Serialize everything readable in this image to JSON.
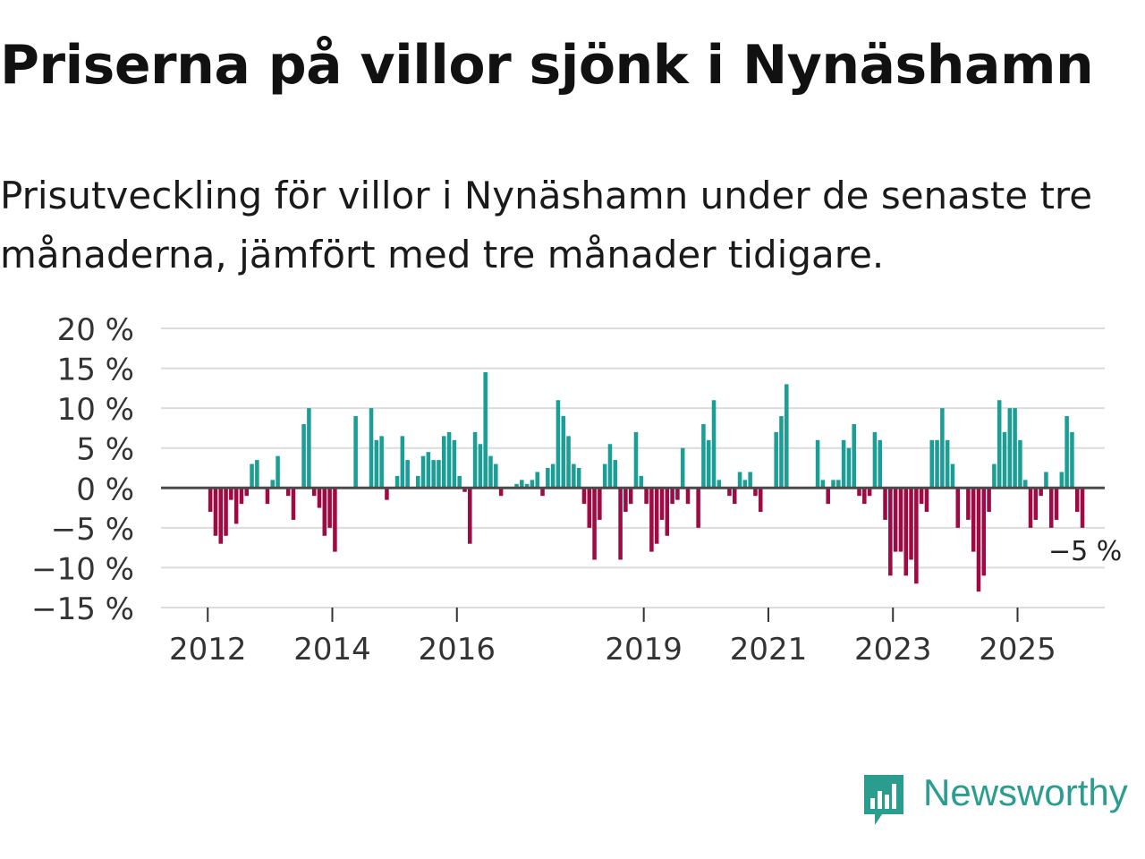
{
  "title": "Priserna på villor sjönk i Nynäshamn",
  "subtitle": "Prisutveckling för villor i Nynäshamn under de senaste tre månaderna, jämfört med tre månader tidigare.",
  "brand": {
    "name": "Newsworthy",
    "color": "#2a9d8f",
    "icon": "newsworthy-logo-icon"
  },
  "colors": {
    "positive": "#1a9e96",
    "negative": "#9e0a44",
    "grid": "#dcdcdc",
    "zero": "#4a4a4a"
  },
  "chart_data": {
    "type": "bar",
    "title": "Priserna på villor sjönk i Nynäshamn",
    "xlabel": "",
    "ylabel": "",
    "ylim": [
      -15,
      20
    ],
    "xlim": [
      2011.25,
      2026.4
    ],
    "y_ticks": [
      20,
      15,
      10,
      5,
      0,
      -5,
      -10,
      -15
    ],
    "y_tick_labels": [
      "20 %",
      "15 %",
      "10 %",
      "5 %",
      "0 %",
      "−5 %",
      "−10 %",
      "−15 %"
    ],
    "x_ticks": [
      2012,
      2014,
      2016,
      2019,
      2021,
      2023,
      2025
    ],
    "x_tick_labels": [
      "2012",
      "2014",
      "2016",
      "2019",
      "2021",
      "2023",
      "2025"
    ],
    "grid": true,
    "annotation": {
      "label": "−5 %",
      "value": -5
    },
    "start_year": 2012,
    "start_month": 1,
    "frequency": "monthly",
    "values": [
      -3,
      -6,
      -7,
      -6,
      -1.5,
      -4.5,
      -2,
      -1,
      3,
      3.5,
      0,
      -2,
      1,
      4,
      0,
      -1,
      -4,
      0,
      8,
      10,
      -1,
      -2.5,
      -6,
      -5,
      -8,
      0,
      0,
      0,
      9,
      0,
      0,
      10,
      6,
      6.5,
      -1.5,
      0,
      1.5,
      6.5,
      3.5,
      0,
      1.5,
      4,
      4.5,
      3.5,
      3.5,
      6.5,
      7,
      6,
      1.5,
      -0.5,
      -7,
      7,
      5.5,
      14.5,
      4,
      3,
      -1,
      0,
      0,
      0.5,
      1,
      0.5,
      1,
      2,
      -1,
      2.5,
      3,
      11,
      9,
      6.5,
      3,
      2.5,
      -2,
      -5,
      -9,
      -4,
      3,
      5.5,
      3.5,
      -9,
      -3,
      -2,
      7,
      1.5,
      -2,
      -8,
      -7,
      -4,
      -6,
      -2,
      -1.5,
      5,
      -2,
      0,
      -5,
      8,
      6,
      11,
      1,
      0,
      -1,
      -2,
      2,
      1,
      2,
      -1,
      -3,
      0,
      0,
      7,
      9,
      13,
      0,
      0,
      0,
      0,
      0,
      6,
      1,
      -2,
      1,
      1,
      6,
      5,
      8,
      -1,
      -2,
      -1,
      7,
      6,
      -4,
      -11,
      -8,
      -8,
      -11,
      -9,
      -12,
      -2,
      -3,
      6,
      6,
      10,
      6,
      3,
      -5,
      0,
      -4,
      -8,
      -13,
      -11,
      -3,
      3,
      11,
      7,
      10,
      10,
      6,
      1,
      -5,
      -4,
      -1,
      2,
      -5,
      -4,
      2,
      9,
      7,
      -3,
      -5
    ]
  }
}
